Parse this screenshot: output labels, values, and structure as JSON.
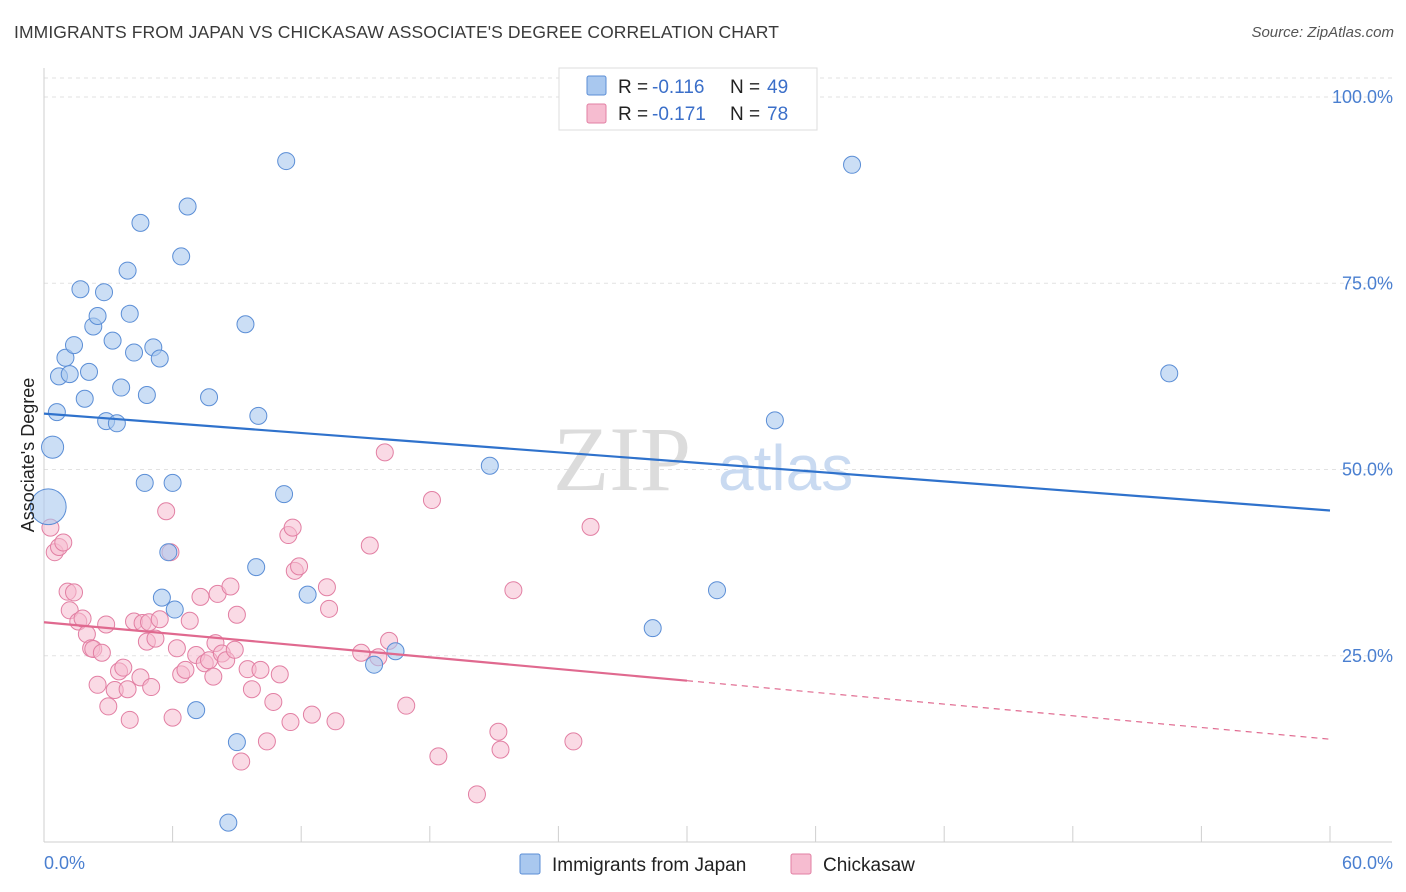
{
  "title": "IMMIGRANTS FROM JAPAN VS CHICKASAW ASSOCIATE'S DEGREE CORRELATION CHART",
  "source": "Source: ZipAtlas.com",
  "watermark": {
    "zip": "ZIP",
    "atlas": "atlas"
  },
  "legend": {
    "r_label": "R =",
    "n_label": "N =",
    "items": [
      {
        "r": "-0.116",
        "n": "49"
      },
      {
        "r": "-0.171",
        "n": "78"
      }
    ]
  },
  "colors": {
    "blue_fill": "#a9c8ef",
    "blue_stroke": "#5b8ed6",
    "blue_line": "#2f72cc",
    "pink_fill": "#f6bcd0",
    "pink_stroke": "#e27fa3",
    "pink_line": "#e0698f"
  },
  "chart_data": {
    "type": "scatter",
    "title": "IMMIGRANTS FROM JAPAN VS CHICKASAW ASSOCIATE'S DEGREE CORRELATION CHART",
    "xlabel": "",
    "ylabel": "Associate's Degree",
    "xlim": [
      0,
      60
    ],
    "ylim": [
      0,
      100
    ],
    "x_tick_labels": [
      "0.0%",
      "60.0%"
    ],
    "y_tick_labels": [
      "100.0%",
      "75.0%",
      "50.0%",
      "25.0%"
    ],
    "y_ticks": [
      100,
      75,
      50,
      25
    ],
    "grid": true,
    "legend_position": "top-center",
    "series": [
      {
        "name": "Immigrants from Japan",
        "color": "#a9c8ef",
        "r": -0.116,
        "n": 49,
        "trend": {
          "x": [
            0,
            60
          ],
          "y": [
            57.5,
            44.5
          ],
          "dashed_from": null
        },
        "points": [
          [
            0.2,
            45.0,
            2.1
          ],
          [
            0.4,
            53.0,
            1.3
          ],
          [
            0.6,
            57.7,
            1
          ],
          [
            0.7,
            62.5,
            1
          ],
          [
            1.0,
            65.0,
            1
          ],
          [
            1.2,
            62.8,
            1
          ],
          [
            1.4,
            66.7,
            1
          ],
          [
            1.7,
            74.2,
            1
          ],
          [
            1.9,
            59.5,
            1
          ],
          [
            2.1,
            63.1,
            1
          ],
          [
            2.3,
            69.2,
            1
          ],
          [
            2.5,
            70.6,
            1
          ],
          [
            2.8,
            73.8,
            1
          ],
          [
            2.9,
            56.5,
            1
          ],
          [
            3.2,
            67.3,
            1
          ],
          [
            3.4,
            56.2,
            1
          ],
          [
            3.6,
            61.0,
            1
          ],
          [
            3.9,
            76.7,
            1
          ],
          [
            4.0,
            70.9,
            1
          ],
          [
            4.2,
            65.7,
            1
          ],
          [
            4.5,
            83.1,
            1
          ],
          [
            4.7,
            48.2,
            1
          ],
          [
            4.8,
            60.0,
            1
          ],
          [
            5.1,
            66.4,
            1
          ],
          [
            5.4,
            64.9,
            1
          ],
          [
            5.5,
            32.8,
            1
          ],
          [
            5.8,
            38.9,
            1
          ],
          [
            6.0,
            48.2,
            1
          ],
          [
            6.1,
            31.2,
            1
          ],
          [
            6.4,
            78.6,
            1
          ],
          [
            6.7,
            85.3,
            1
          ],
          [
            7.1,
            17.7,
            1
          ],
          [
            7.7,
            59.7,
            1
          ],
          [
            8.6,
            2.6,
            1
          ],
          [
            9.0,
            13.4,
            1
          ],
          [
            9.4,
            69.5,
            1
          ],
          [
            9.9,
            36.9,
            1
          ],
          [
            10.0,
            57.2,
            1
          ],
          [
            11.2,
            46.7,
            1
          ],
          [
            11.3,
            91.4,
            1
          ],
          [
            12.3,
            33.2,
            1
          ],
          [
            15.4,
            23.8,
            1
          ],
          [
            16.4,
            25.6,
            1
          ],
          [
            20.8,
            50.5,
            1
          ],
          [
            28.4,
            28.7,
            1
          ],
          [
            31.4,
            33.8,
            1
          ],
          [
            34.1,
            56.6,
            1
          ],
          [
            37.7,
            90.9,
            1
          ],
          [
            52.5,
            62.9,
            1
          ]
        ]
      },
      {
        "name": "Chickasaw",
        "color": "#f6bcd0",
        "r": -0.171,
        "n": 78,
        "trend": {
          "x": [
            0,
            60
          ],
          "y": [
            29.5,
            13.8
          ],
          "dashed_from": 30.0
        },
        "points": [
          [
            0.3,
            42.2,
            1
          ],
          [
            0.5,
            38.9,
            1
          ],
          [
            0.7,
            39.6,
            1
          ],
          [
            0.9,
            40.2,
            1
          ],
          [
            1.1,
            33.6,
            1
          ],
          [
            1.2,
            31.1,
            1
          ],
          [
            1.4,
            33.5,
            1
          ],
          [
            1.6,
            29.6,
            1
          ],
          [
            1.8,
            30.0,
            1
          ],
          [
            2.0,
            27.9,
            1
          ],
          [
            2.2,
            26.0,
            1
          ],
          [
            2.3,
            25.9,
            1
          ],
          [
            2.5,
            21.1,
            1
          ],
          [
            2.7,
            25.4,
            1
          ],
          [
            2.9,
            29.2,
            1
          ],
          [
            3.0,
            18.2,
            1
          ],
          [
            3.3,
            20.4,
            1
          ],
          [
            3.5,
            22.9,
            1
          ],
          [
            3.7,
            23.4,
            1
          ],
          [
            3.9,
            20.5,
            1
          ],
          [
            4.0,
            16.4,
            1
          ],
          [
            4.2,
            29.6,
            1
          ],
          [
            4.5,
            22.1,
            1
          ],
          [
            4.6,
            29.4,
            1
          ],
          [
            4.8,
            26.9,
            1
          ],
          [
            4.9,
            29.5,
            1
          ],
          [
            5.0,
            20.8,
            1
          ],
          [
            5.2,
            27.3,
            1
          ],
          [
            5.4,
            29.9,
            1
          ],
          [
            5.7,
            44.4,
            1
          ],
          [
            5.9,
            38.9,
            1
          ],
          [
            6.0,
            16.7,
            1
          ],
          [
            6.2,
            26.0,
            1
          ],
          [
            6.4,
            22.5,
            1
          ],
          [
            6.6,
            23.1,
            1
          ],
          [
            6.8,
            29.7,
            1
          ],
          [
            7.1,
            25.1,
            1
          ],
          [
            7.3,
            32.9,
            1
          ],
          [
            7.5,
            24.0,
            1
          ],
          [
            7.7,
            24.4,
            1
          ],
          [
            7.9,
            22.2,
            1
          ],
          [
            8.0,
            26.7,
            1
          ],
          [
            8.1,
            33.3,
            1
          ],
          [
            8.3,
            25.3,
            1
          ],
          [
            8.5,
            24.4,
            1
          ],
          [
            8.7,
            34.3,
            1
          ],
          [
            8.9,
            25.8,
            1
          ],
          [
            9.0,
            30.5,
            1
          ],
          [
            9.2,
            10.8,
            1
          ],
          [
            9.5,
            23.2,
            1
          ],
          [
            9.7,
            20.5,
            1
          ],
          [
            10.1,
            23.1,
            1
          ],
          [
            10.4,
            13.5,
            1
          ],
          [
            10.7,
            18.8,
            1
          ],
          [
            11.0,
            22.5,
            1
          ],
          [
            11.4,
            41.2,
            1
          ],
          [
            11.5,
            16.1,
            1
          ],
          [
            11.6,
            42.2,
            1
          ],
          [
            11.7,
            36.4,
            1
          ],
          [
            11.9,
            37.0,
            1
          ],
          [
            12.5,
            17.1,
            1
          ],
          [
            13.2,
            34.2,
            1
          ],
          [
            13.3,
            31.3,
            1
          ],
          [
            13.6,
            16.2,
            1
          ],
          [
            14.8,
            25.4,
            1
          ],
          [
            15.2,
            39.8,
            1
          ],
          [
            15.6,
            24.8,
            1
          ],
          [
            15.9,
            52.3,
            1
          ],
          [
            16.1,
            27.0,
            1
          ],
          [
            16.9,
            18.3,
            1
          ],
          [
            18.1,
            45.9,
            1
          ],
          [
            18.4,
            11.5,
            1
          ],
          [
            20.2,
            6.4,
            1
          ],
          [
            21.2,
            14.8,
            1
          ],
          [
            21.3,
            12.4,
            1
          ],
          [
            21.9,
            33.8,
            1
          ],
          [
            24.7,
            13.5,
            1
          ],
          [
            25.5,
            42.3,
            1
          ]
        ]
      }
    ]
  }
}
